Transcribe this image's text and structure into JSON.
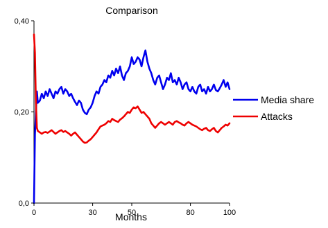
{
  "chart_data": {
    "type": "line",
    "title": "Comparison",
    "xlabel": "Months",
    "ylabel": "",
    "xlim": [
      0,
      100
    ],
    "ylim": [
      0,
      0.4
    ],
    "x_ticks": [
      0,
      30,
      50,
      80,
      100
    ],
    "x_tick_labels": [
      "0",
      "30",
      "50",
      "80",
      "100"
    ],
    "y_ticks": [
      0,
      0.2,
      0.4
    ],
    "y_tick_labels": [
      "0,0",
      "0,20",
      "0,40"
    ],
    "grid": false,
    "legend_position": "right",
    "series": [
      {
        "name": "Media share",
        "color": "#0000ee",
        "x": [
          0,
          0.5,
          1,
          1.5,
          2,
          3,
          4,
          5,
          6,
          7,
          8,
          9,
          10,
          11,
          12,
          13,
          14,
          15,
          16,
          17,
          18,
          19,
          20,
          21,
          22,
          23,
          24,
          25,
          26,
          27,
          28,
          29,
          30,
          31,
          32,
          33,
          34,
          35,
          36,
          37,
          38,
          39,
          40,
          41,
          42,
          43,
          44,
          45,
          46,
          47,
          48,
          49,
          50,
          51,
          52,
          53,
          54,
          55,
          56,
          57,
          58,
          59,
          60,
          61,
          62,
          63,
          64,
          65,
          66,
          67,
          68,
          69,
          70,
          71,
          72,
          73,
          74,
          75,
          76,
          77,
          78,
          79,
          80,
          81,
          82,
          83,
          84,
          85,
          86,
          87,
          88,
          89,
          90,
          91,
          92,
          93,
          94,
          95,
          96,
          97,
          98,
          99,
          100
        ],
        "values": [
          0.0,
          0.15,
          0.2,
          0.245,
          0.22,
          0.225,
          0.24,
          0.23,
          0.245,
          0.235,
          0.25,
          0.24,
          0.23,
          0.245,
          0.24,
          0.25,
          0.255,
          0.24,
          0.25,
          0.245,
          0.235,
          0.24,
          0.23,
          0.222,
          0.215,
          0.225,
          0.22,
          0.205,
          0.198,
          0.195,
          0.205,
          0.21,
          0.22,
          0.235,
          0.245,
          0.24,
          0.255,
          0.26,
          0.27,
          0.265,
          0.28,
          0.275,
          0.29,
          0.28,
          0.295,
          0.285,
          0.3,
          0.28,
          0.27,
          0.285,
          0.29,
          0.3,
          0.32,
          0.305,
          0.31,
          0.32,
          0.315,
          0.3,
          0.32,
          0.335,
          0.31,
          0.295,
          0.285,
          0.27,
          0.26,
          0.275,
          0.28,
          0.265,
          0.25,
          0.26,
          0.275,
          0.27,
          0.285,
          0.265,
          0.27,
          0.26,
          0.275,
          0.265,
          0.25,
          0.26,
          0.265,
          0.25,
          0.245,
          0.255,
          0.245,
          0.24,
          0.255,
          0.26,
          0.245,
          0.25,
          0.24,
          0.255,
          0.245,
          0.25,
          0.26,
          0.248,
          0.245,
          0.252,
          0.26,
          0.27,
          0.255,
          0.265,
          0.25
        ]
      },
      {
        "name": "Attacks",
        "color": "#ee0000",
        "x": [
          0,
          0.5,
          1,
          1.5,
          2,
          3,
          4,
          5,
          6,
          7,
          8,
          9,
          10,
          11,
          12,
          13,
          14,
          15,
          16,
          17,
          18,
          19,
          20,
          21,
          22,
          23,
          24,
          25,
          26,
          27,
          28,
          29,
          30,
          31,
          32,
          33,
          34,
          35,
          36,
          37,
          38,
          39,
          40,
          41,
          42,
          43,
          44,
          45,
          46,
          47,
          48,
          49,
          50,
          51,
          52,
          53,
          54,
          55,
          56,
          57,
          58,
          59,
          60,
          61,
          62,
          63,
          64,
          65,
          66,
          67,
          68,
          69,
          70,
          71,
          72,
          73,
          74,
          75,
          76,
          77,
          78,
          79,
          80,
          81,
          82,
          83,
          84,
          85,
          86,
          87,
          88,
          89,
          90,
          91,
          92,
          93,
          94,
          95,
          96,
          97,
          98,
          99,
          100
        ],
        "values": [
          0.37,
          0.33,
          0.22,
          0.165,
          0.158,
          0.155,
          0.152,
          0.155,
          0.156,
          0.154,
          0.157,
          0.16,
          0.156,
          0.152,
          0.155,
          0.158,
          0.16,
          0.156,
          0.158,
          0.155,
          0.152,
          0.148,
          0.152,
          0.155,
          0.15,
          0.145,
          0.14,
          0.135,
          0.132,
          0.133,
          0.137,
          0.14,
          0.145,
          0.15,
          0.155,
          0.162,
          0.168,
          0.17,
          0.172,
          0.175,
          0.18,
          0.178,
          0.185,
          0.182,
          0.18,
          0.178,
          0.183,
          0.186,
          0.19,
          0.195,
          0.2,
          0.198,
          0.205,
          0.21,
          0.208,
          0.212,
          0.205,
          0.198,
          0.2,
          0.195,
          0.19,
          0.185,
          0.175,
          0.17,
          0.165,
          0.17,
          0.175,
          0.178,
          0.175,
          0.172,
          0.175,
          0.178,
          0.175,
          0.172,
          0.178,
          0.18,
          0.177,
          0.175,
          0.172,
          0.17,
          0.175,
          0.178,
          0.175,
          0.172,
          0.17,
          0.168,
          0.165,
          0.162,
          0.16,
          0.163,
          0.165,
          0.16,
          0.158,
          0.162,
          0.165,
          0.158,
          0.155,
          0.16,
          0.165,
          0.168,
          0.172,
          0.17,
          0.175
        ]
      }
    ]
  }
}
